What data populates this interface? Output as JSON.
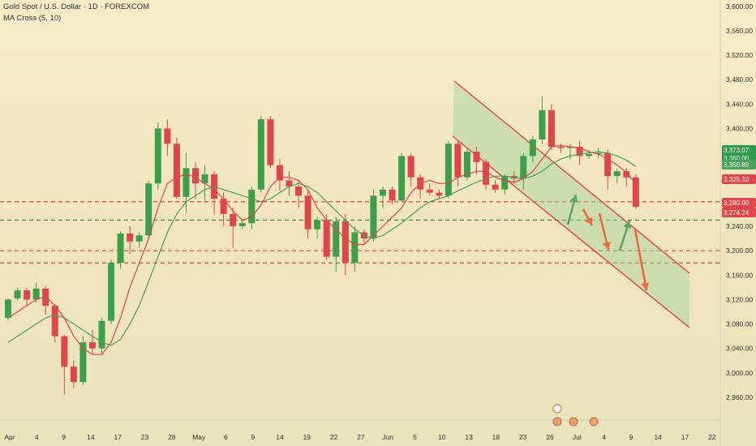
{
  "header": {
    "symbol_line": "Gold Spot / U.S. Dollar · 1D · FOREXCOM",
    "indicator_line": "MA Cross (5, 10)"
  },
  "colors": {
    "up": "#3aa14a",
    "down": "#e0454a",
    "ma5": "#e0454a",
    "ma10": "#4a9f55",
    "channel_fill": "#9fd39a",
    "channel_line": "#e0454a",
    "level_line": "#d23434",
    "mid_level_line": "#2f7b49"
  },
  "price_labels": [
    {
      "value": "3,373.07",
      "color": "#2e9a4b"
    },
    {
      "value": "3,360.00",
      "color": "#2e9a4b"
    },
    {
      "value": "3,350.89",
      "color": "#4aa25a"
    },
    {
      "value": "3,325.33",
      "color": "#e0454a"
    },
    {
      "value": "3,280.00",
      "color": "#e0454a"
    },
    {
      "value": "3,274.24",
      "color": "#e0454a"
    }
  ],
  "chart_data": {
    "type": "candlestick",
    "title": "Gold Spot / U.S. Dollar · 1D · FOREXCOM",
    "ylim": [
      2940,
      3605
    ],
    "y_ticks": [
      "3,600.00",
      "3,560.00",
      "3,520.00",
      "3,480.00",
      "3,440.00",
      "3,400.00",
      "3,360.00",
      "3,320.00",
      "3,280.00",
      "3,240.00",
      "3,200.00",
      "3,160.00",
      "3,120.00",
      "3,080.00",
      "3,040.00",
      "3,000.00",
      "2,960.00"
    ],
    "x_ticks": [
      "Apr",
      "4",
      "9",
      "14",
      "17",
      "23",
      "28",
      "May",
      "6",
      "9",
      "14",
      "19",
      "22",
      "27",
      "Jun",
      "5",
      "10",
      "13",
      "18",
      "23",
      "26",
      "Jul",
      "4",
      "9",
      "14",
      "17",
      "22"
    ],
    "horizontal_levels": [
      3280,
      3250,
      3200,
      3180
    ],
    "candles": [
      [
        3090,
        3120,
        3085,
        3122
      ],
      [
        3122,
        3135,
        3118,
        3140
      ],
      [
        3135,
        3120,
        3110,
        3140
      ],
      [
        3120,
        3138,
        3115,
        3148
      ],
      [
        3138,
        3110,
        3095,
        3142
      ],
      [
        3110,
        3060,
        3050,
        3112
      ],
      [
        3060,
        3010,
        2965,
        3062
      ],
      [
        3010,
        2985,
        2975,
        3020
      ],
      [
        2985,
        3050,
        2980,
        3060
      ],
      [
        3050,
        3040,
        3030,
        3070
      ],
      [
        3040,
        3085,
        3030,
        3090
      ],
      [
        3085,
        3180,
        3080,
        3185
      ],
      [
        3180,
        3228,
        3170,
        3232
      ],
      [
        3228,
        3215,
        3195,
        3240
      ],
      [
        3215,
        3225,
        3205,
        3230
      ],
      [
        3225,
        3310,
        3220,
        3315
      ],
      [
        3310,
        3400,
        3300,
        3410
      ],
      [
        3400,
        3375,
        3355,
        3415
      ],
      [
        3375,
        3288,
        3285,
        3385
      ],
      [
        3288,
        3335,
        3262,
        3360
      ],
      [
        3335,
        3310,
        3285,
        3345
      ],
      [
        3310,
        3325,
        3280,
        3340
      ],
      [
        3325,
        3285,
        3260,
        3330
      ],
      [
        3285,
        3260,
        3240,
        3295
      ],
      [
        3260,
        3240,
        3205,
        3270
      ],
      [
        3240,
        3245,
        3235,
        3250
      ],
      [
        3245,
        3300,
        3235,
        3305
      ],
      [
        3300,
        3415,
        3295,
        3420
      ],
      [
        3415,
        3340,
        3335,
        3420
      ],
      [
        3340,
        3315,
        3298,
        3350
      ],
      [
        3315,
        3305,
        3290,
        3330
      ],
      [
        3305,
        3290,
        3270,
        3315
      ],
      [
        3290,
        3235,
        3220,
        3300
      ],
      [
        3235,
        3250,
        3220,
        3255
      ],
      [
        3250,
        3190,
        3185,
        3260
      ],
      [
        3190,
        3248,
        3165,
        3255
      ],
      [
        3248,
        3180,
        3160,
        3260
      ],
      [
        3180,
        3230,
        3165,
        3240
      ],
      [
        3230,
        3220,
        3210,
        3235
      ],
      [
        3220,
        3290,
        3215,
        3300
      ],
      [
        3290,
        3300,
        3270,
        3305
      ],
      [
        3300,
        3282,
        3275,
        3305
      ],
      [
        3282,
        3355,
        3280,
        3360
      ],
      [
        3355,
        3320,
        3305,
        3360
      ],
      [
        3320,
        3300,
        3285,
        3325
      ],
      [
        3300,
        3295,
        3290,
        3310
      ],
      [
        3295,
        3290,
        3285,
        3300
      ],
      [
        3290,
        3375,
        3285,
        3380
      ],
      [
        3375,
        3320,
        3305,
        3380
      ],
      [
        3320,
        3362,
        3315,
        3368
      ],
      [
        3362,
        3345,
        3325,
        3370
      ],
      [
        3345,
        3308,
        3300,
        3350
      ],
      [
        3308,
        3300,
        3295,
        3315
      ],
      [
        3300,
        3322,
        3292,
        3325
      ],
      [
        3322,
        3318,
        3310,
        3330
      ],
      [
        3318,
        3355,
        3300,
        3360
      ],
      [
        3355,
        3382,
        3345,
        3388
      ],
      [
        3382,
        3430,
        3375,
        3452
      ],
      [
        3430,
        3370,
        3365,
        3440
      ],
      [
        3370,
        3368,
        3360,
        3375
      ],
      [
        3368,
        3370,
        3350,
        3375
      ],
      [
        3370,
        3355,
        3340,
        3380
      ],
      [
        3355,
        3358,
        3350,
        3365
      ],
      [
        3358,
        3360,
        3352,
        3368
      ],
      [
        3360,
        3322,
        3300,
        3365
      ],
      [
        3322,
        3330,
        3310,
        3335
      ],
      [
        3330,
        3320,
        3305,
        3335
      ],
      [
        3320,
        3272,
        3268,
        3325
      ]
    ],
    "ma5": [
      3090,
      3100,
      3110,
      3120,
      3125,
      3110,
      3090,
      3060,
      3040,
      3030,
      3030,
      3050,
      3090,
      3140,
      3180,
      3220,
      3270,
      3310,
      3320,
      3325,
      3320,
      3310,
      3300,
      3285,
      3265,
      3250,
      3255,
      3275,
      3305,
      3320,
      3320,
      3315,
      3300,
      3270,
      3250,
      3235,
      3220,
      3210,
      3210,
      3225,
      3240,
      3255,
      3270,
      3295,
      3310,
      3315,
      3310,
      3310,
      3320,
      3325,
      3330,
      3330,
      3320,
      3315,
      3312,
      3318,
      3330,
      3350,
      3370,
      3372,
      3370,
      3368,
      3362,
      3358,
      3350,
      3340,
      3328,
      3310
    ],
    "ma10": [
      3050,
      3060,
      3070,
      3080,
      3090,
      3095,
      3090,
      3080,
      3070,
      3060,
      3050,
      3045,
      3055,
      3080,
      3110,
      3150,
      3190,
      3230,
      3260,
      3280,
      3290,
      3300,
      3305,
      3300,
      3295,
      3290,
      3285,
      3280,
      3285,
      3295,
      3305,
      3310,
      3305,
      3295,
      3280,
      3265,
      3250,
      3235,
      3225,
      3220,
      3225,
      3235,
      3245,
      3258,
      3270,
      3280,
      3285,
      3290,
      3298,
      3305,
      3312,
      3318,
      3322,
      3322,
      3320,
      3318,
      3322,
      3330,
      3342,
      3350,
      3355,
      3358,
      3360,
      3362,
      3360,
      3355,
      3348,
      3338
    ]
  }
}
